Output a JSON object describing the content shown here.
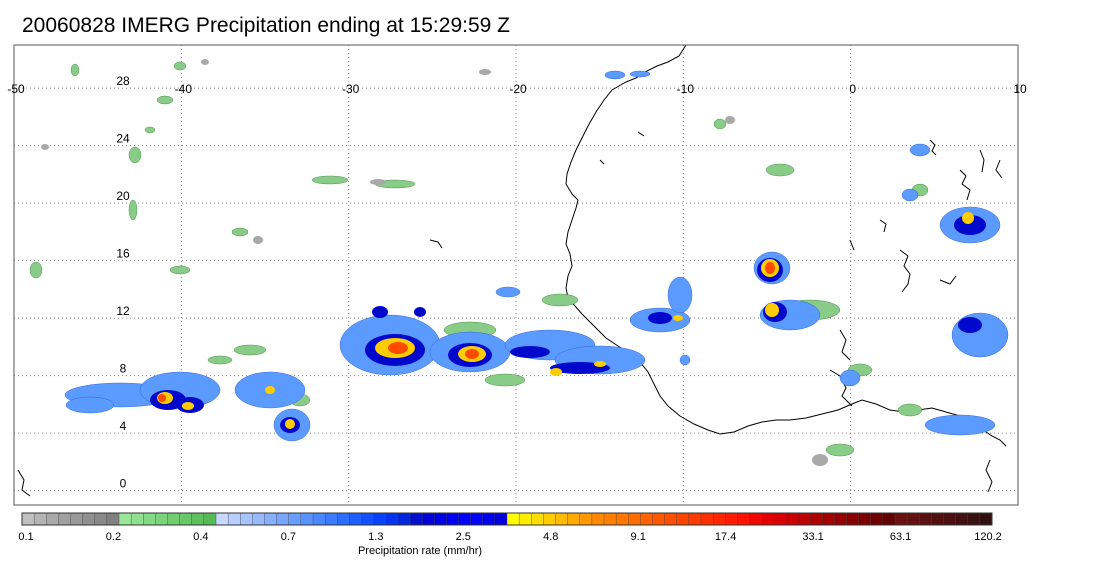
{
  "title": "20060828 IMERG Precipitation ending at 15:29:59 Z",
  "map": {
    "lon_range": [
      -50,
      10
    ],
    "lat_range": [
      -1,
      31
    ],
    "lon_ticks": [
      "-50",
      "-40",
      "-30",
      "-20",
      "-10",
      "0",
      "10"
    ],
    "lat_ticks": [
      "0",
      "4",
      "8",
      "12",
      "16",
      "20",
      "24",
      "28"
    ],
    "grid": "dotted"
  },
  "colorbar": {
    "label": "Precipitation rate (mm/hr)",
    "tick_labels": [
      "0.1",
      "0.2",
      "0.4",
      "0.7",
      "1.3",
      "2.5",
      "4.8",
      "9.1",
      "17.4",
      "33.1",
      "63.1",
      "120.2"
    ],
    "colors": [
      "#c0c0c0",
      "#b4b4b4",
      "#aaaaaa",
      "#a0a0a0",
      "#999999",
      "#909090",
      "#888888",
      "#808080",
      "#99e699",
      "#8fe08f",
      "#85da85",
      "#7bd47b",
      "#71ce71",
      "#67c867",
      "#5dc25d",
      "#55bb55",
      "#c8d8ff",
      "#b8ceff",
      "#a8c4ff",
      "#98baff",
      "#88b0ff",
      "#78a6ff",
      "#689cff",
      "#5892ff",
      "#4888ff",
      "#3a7aff",
      "#2c6cff",
      "#1e5eff",
      "#1050ff",
      "#0842ff",
      "#0434ee",
      "#0026dd",
      "#0010cc",
      "#0000d8",
      "#0000e4",
      "#0000f0",
      "#0000f8",
      "#0000ff",
      "#0000ee",
      "#0000dd",
      "#ffff00",
      "#ffee00",
      "#ffdd00",
      "#ffcc00",
      "#ffbb00",
      "#ffaa00",
      "#ff9900",
      "#ff8800",
      "#ff8000",
      "#ff7600",
      "#ff6c00",
      "#ff6200",
      "#ff5800",
      "#ff4e00",
      "#ff4400",
      "#ff3a00",
      "#ff3000",
      "#ff2600",
      "#ff1c00",
      "#ff1200",
      "#f20800",
      "#e50000",
      "#d80000",
      "#cb0000",
      "#be0000",
      "#b10000",
      "#a40000",
      "#970000",
      "#8a0000",
      "#7d0000",
      "#700000",
      "#630000",
      "#6a1010",
      "#621010",
      "#5a1010",
      "#521010",
      "#4a1010",
      "#421010",
      "#3a1010",
      "#321010"
    ]
  }
}
